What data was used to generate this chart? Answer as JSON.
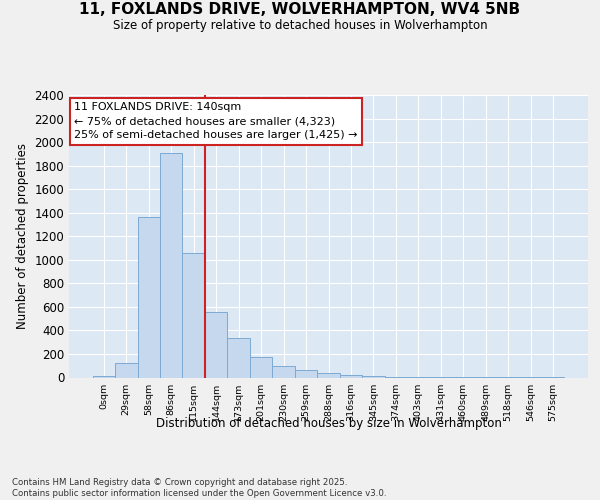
{
  "title1": "11, FOXLANDS DRIVE, WOLVERHAMPTON, WV4 5NB",
  "title2": "Size of property relative to detached houses in Wolverhampton",
  "xlabel": "Distribution of detached houses by size in Wolverhampton",
  "ylabel": "Number of detached properties",
  "bar_color": "#c5d8ee",
  "bar_edge_color": "#7baad4",
  "plot_bg_color": "#dde8f5",
  "fig_bg_color": "#f0f0f0",
  "grid_color": "#ffffff",
  "vline_color": "#cc2222",
  "annotation_title": "11 FOXLANDS DRIVE: 140sqm",
  "annotation_line1": "← 75% of detached houses are smaller (4,323)",
  "annotation_line2": "25% of semi-detached houses are larger (1,425) →",
  "categories": [
    "0sqm",
    "29sqm",
    "58sqm",
    "86sqm",
    "115sqm",
    "144sqm",
    "173sqm",
    "201sqm",
    "230sqm",
    "259sqm",
    "288sqm",
    "316sqm",
    "345sqm",
    "374sqm",
    "403sqm",
    "431sqm",
    "460sqm",
    "489sqm",
    "518sqm",
    "546sqm",
    "575sqm"
  ],
  "values": [
    10,
    125,
    1360,
    1910,
    1055,
    560,
    335,
    170,
    100,
    65,
    35,
    25,
    10,
    5,
    3,
    2,
    1,
    1,
    1,
    1,
    5
  ],
  "ylim": [
    0,
    2400
  ],
  "yticks": [
    0,
    200,
    400,
    600,
    800,
    1000,
    1200,
    1400,
    1600,
    1800,
    2000,
    2200,
    2400
  ],
  "footer1": "Contains HM Land Registry data © Crown copyright and database right 2025.",
  "footer2": "Contains public sector information licensed under the Open Government Licence v3.0.",
  "vline_position": 5
}
